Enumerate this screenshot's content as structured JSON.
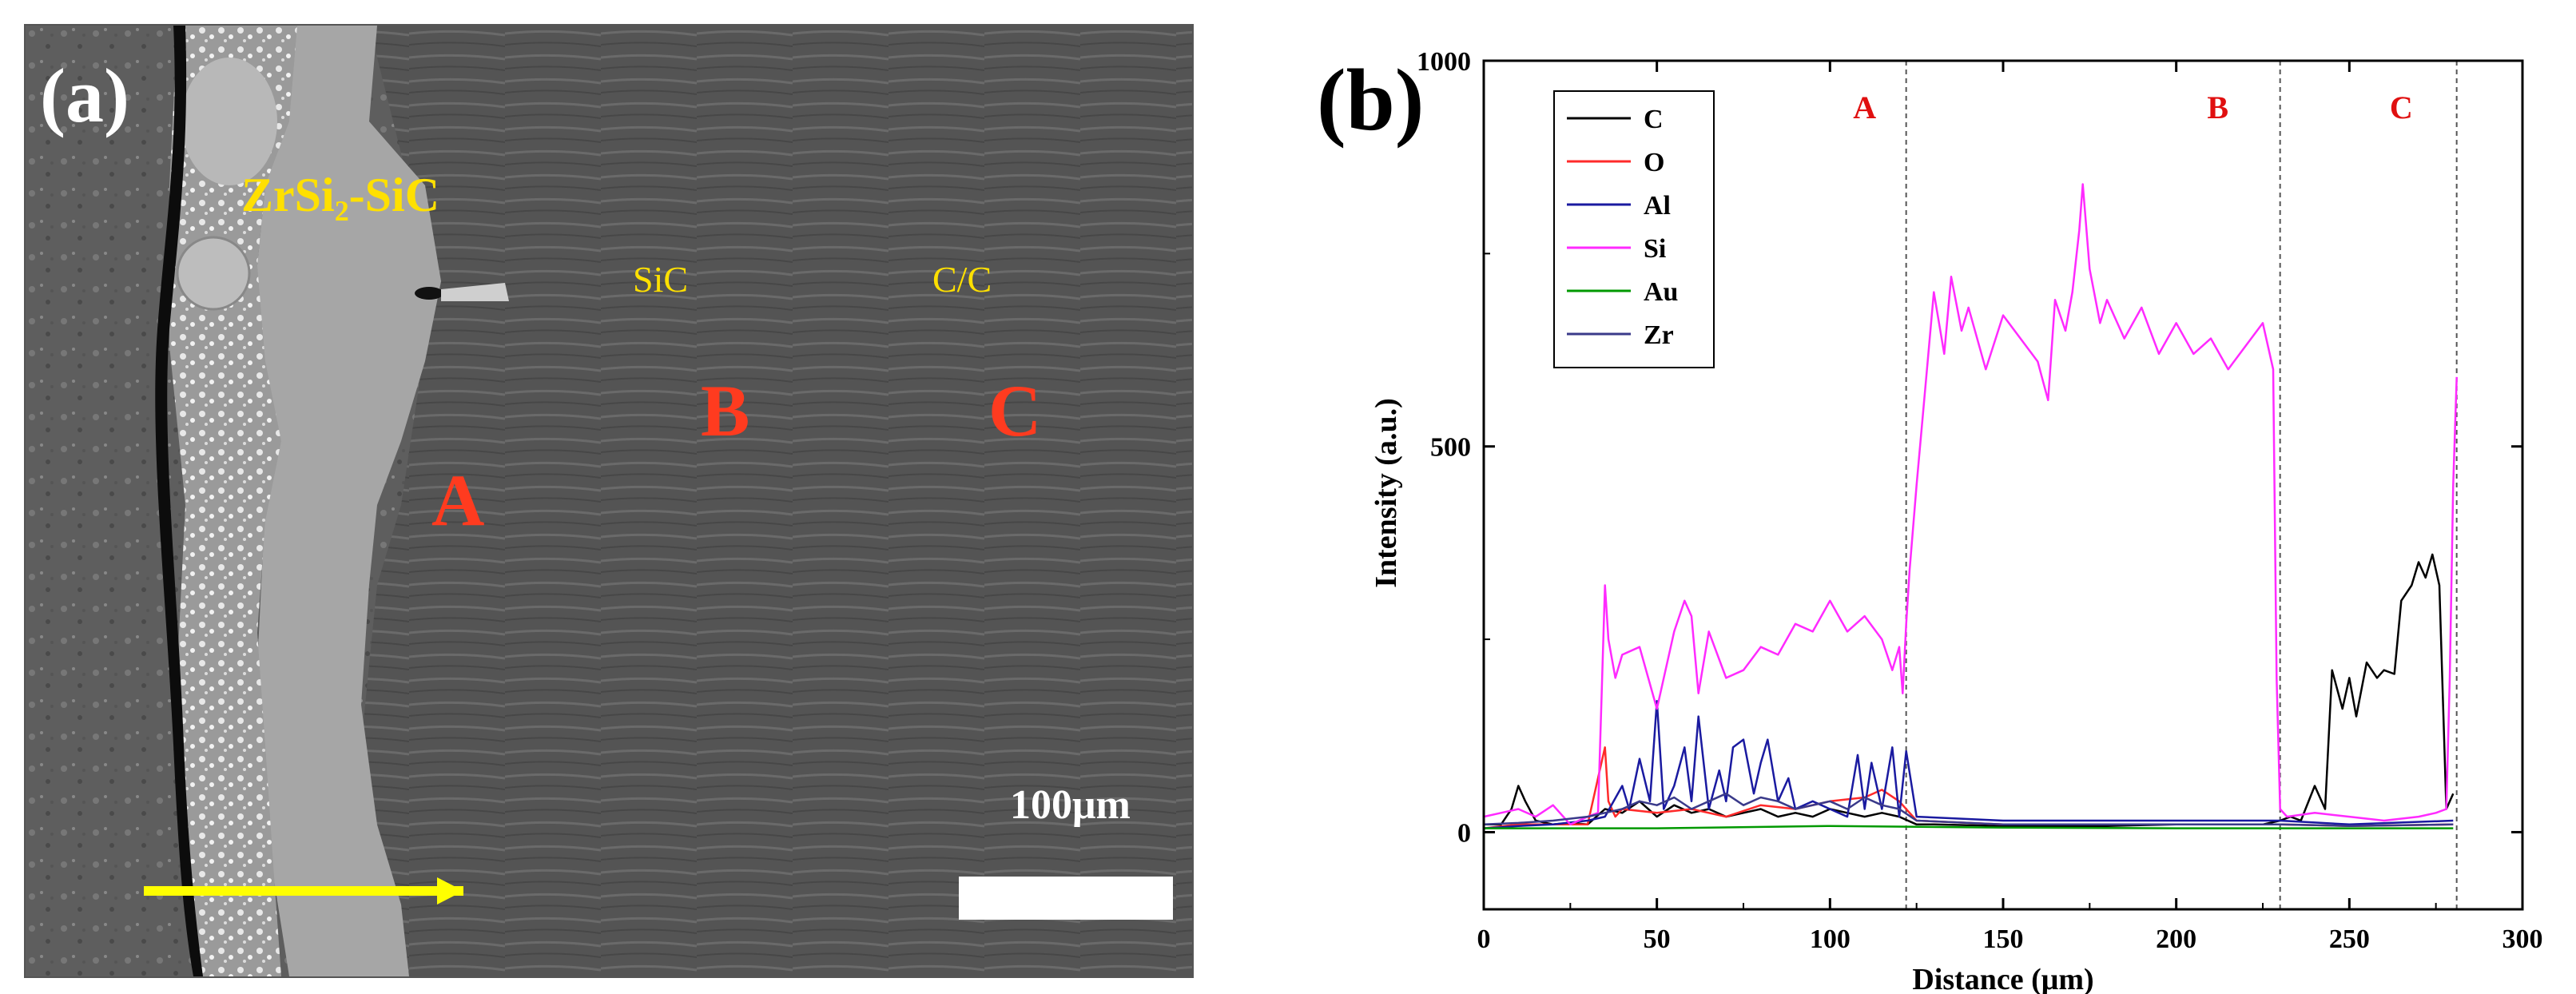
{
  "panel_a": {
    "label": "(a)",
    "zrsi2_label": "ZrSi₂-SiC",
    "sic_label": "SiC",
    "cc_label": "C/C",
    "point_A": "A",
    "point_B": "B",
    "point_C": "C",
    "scale_bar_text": "100μm"
  },
  "panel_b": {
    "label": "(b)"
  },
  "chart_data": {
    "type": "line",
    "title": "",
    "xlabel": "Distance (μm)",
    "ylabel": "Intensity (a.u.)",
    "xlim": [
      0,
      300
    ],
    "ylim": [
      -100,
      1000
    ],
    "xticks": [
      0,
      50,
      100,
      150,
      200,
      250,
      300
    ],
    "yticks": [
      0,
      500,
      1000
    ],
    "legend_position": "top-left",
    "region_lines": [
      122,
      230,
      281
    ],
    "region_labels": [
      {
        "text": "A",
        "x": 110
      },
      {
        "text": "B",
        "x": 212
      },
      {
        "text": "C",
        "x": 265
      }
    ],
    "colors": {
      "C": "#000000",
      "O": "#ff2a2a",
      "Al": "#1a1aa0",
      "Si": "#ff2aff",
      "Au": "#009900",
      "Zr": "#3a3a8a",
      "region_label": "#e01010"
    },
    "series": [
      {
        "name": "C",
        "x": [
          0,
          5,
          8,
          10,
          12,
          15,
          20,
          25,
          30,
          35,
          40,
          45,
          50,
          55,
          60,
          65,
          70,
          75,
          80,
          85,
          90,
          95,
          100,
          105,
          110,
          115,
          120,
          125,
          130,
          150,
          180,
          200,
          225,
          230,
          233,
          236,
          240,
          243,
          245,
          248,
          250,
          252,
          255,
          258,
          260,
          263,
          265,
          268,
          270,
          272,
          274,
          276,
          278,
          280
        ],
        "y": [
          10,
          10,
          30,
          60,
          40,
          15,
          10,
          12,
          10,
          30,
          25,
          40,
          20,
          35,
          25,
          30,
          20,
          25,
          30,
          20,
          25,
          20,
          30,
          25,
          20,
          25,
          20,
          10,
          10,
          8,
          8,
          10,
          10,
          15,
          20,
          15,
          60,
          30,
          210,
          160,
          200,
          150,
          220,
          200,
          210,
          205,
          300,
          320,
          350,
          330,
          360,
          320,
          30,
          50
        ]
      },
      {
        "name": "O",
        "x": [
          0,
          10,
          20,
          30,
          34,
          35,
          36,
          38,
          40,
          50,
          60,
          70,
          80,
          90,
          100,
          110,
          115,
          120,
          125,
          150,
          200,
          230,
          250,
          280
        ],
        "y": [
          5,
          10,
          10,
          10,
          90,
          110,
          40,
          20,
          30,
          25,
          30,
          20,
          35,
          30,
          40,
          45,
          55,
          40,
          15,
          10,
          10,
          10,
          8,
          10
        ]
      },
      {
        "name": "Al",
        "x": [
          0,
          10,
          20,
          30,
          35,
          40,
          42,
          45,
          48,
          50,
          52,
          55,
          58,
          60,
          62,
          65,
          68,
          70,
          72,
          75,
          78,
          80,
          82,
          85,
          88,
          90,
          95,
          100,
          105,
          108,
          110,
          112,
          115,
          118,
          120,
          122,
          125,
          150,
          200,
          230,
          250,
          280
        ],
        "y": [
          5,
          8,
          10,
          15,
          20,
          60,
          30,
          95,
          40,
          170,
          30,
          60,
          110,
          40,
          150,
          30,
          80,
          40,
          110,
          120,
          50,
          90,
          120,
          40,
          70,
          30,
          40,
          30,
          20,
          100,
          30,
          90,
          30,
          110,
          20,
          105,
          20,
          15,
          15,
          15,
          10,
          15
        ]
      },
      {
        "name": "Si",
        "x": [
          0,
          5,
          10,
          15,
          20,
          25,
          30,
          33,
          34,
          35,
          36,
          38,
          40,
          45,
          50,
          55,
          58,
          60,
          62,
          65,
          70,
          75,
          80,
          85,
          90,
          95,
          100,
          105,
          110,
          115,
          118,
          120,
          121,
          122,
          123,
          125,
          128,
          130,
          133,
          135,
          138,
          140,
          145,
          150,
          155,
          160,
          163,
          165,
          168,
          170,
          172,
          173,
          175,
          178,
          180,
          185,
          190,
          195,
          200,
          205,
          210,
          215,
          220,
          225,
          228,
          229,
          230,
          232,
          240,
          250,
          260,
          270,
          275,
          278,
          279,
          280,
          281
        ],
        "y": [
          20,
          25,
          30,
          20,
          35,
          10,
          20,
          25,
          170,
          320,
          250,
          200,
          230,
          240,
          160,
          260,
          300,
          280,
          180,
          260,
          200,
          210,
          240,
          230,
          270,
          260,
          300,
          260,
          280,
          250,
          210,
          240,
          180,
          270,
          340,
          450,
          600,
          700,
          620,
          720,
          650,
          680,
          600,
          670,
          640,
          610,
          560,
          690,
          650,
          700,
          780,
          840,
          730,
          660,
          690,
          640,
          680,
          620,
          660,
          620,
          640,
          600,
          630,
          660,
          600,
          200,
          30,
          20,
          25,
          20,
          15,
          20,
          25,
          30,
          200,
          450,
          590
        ]
      },
      {
        "name": "Au",
        "x": [
          0,
          50,
          100,
          150,
          200,
          250,
          280
        ],
        "y": [
          5,
          5,
          8,
          6,
          5,
          5,
          5
        ]
      },
      {
        "name": "Zr",
        "x": [
          0,
          10,
          20,
          30,
          35,
          40,
          45,
          50,
          55,
          60,
          65,
          70,
          75,
          80,
          85,
          90,
          95,
          100,
          105,
          110,
          115,
          120,
          125,
          150,
          200,
          230,
          250,
          280
        ],
        "y": [
          10,
          12,
          15,
          20,
          25,
          30,
          40,
          35,
          45,
          30,
          40,
          50,
          35,
          45,
          40,
          30,
          35,
          40,
          30,
          45,
          35,
          30,
          15,
          10,
          10,
          10,
          8,
          10
        ]
      }
    ]
  }
}
